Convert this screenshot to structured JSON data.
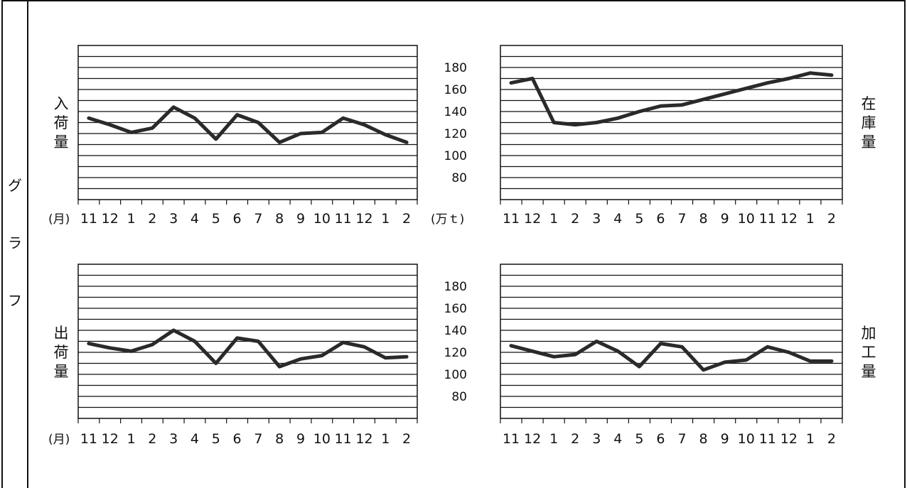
{
  "side_title": [
    "グ",
    "ラ",
    "フ"
  ],
  "month_unit": "(月)",
  "value_unit": "(万ｔ)",
  "x_ticks": [
    "11",
    "12",
    "1",
    "2",
    "3",
    "4",
    "5",
    "6",
    "7",
    "8",
    "9",
    "10",
    "11",
    "12",
    "1",
    "2"
  ],
  "chart_data": [
    {
      "type": "line",
      "id": "arrivals",
      "label": [
        "入",
        "荷",
        "量"
      ],
      "ylim": [
        60,
        200
      ],
      "yticks": [],
      "grid": true,
      "series": [
        {
          "values": [
            134,
            128,
            121,
            125,
            144,
            134,
            115,
            137,
            130,
            112,
            120,
            121,
            134,
            128,
            119,
            112
          ]
        }
      ]
    },
    {
      "type": "line",
      "id": "inventory",
      "label": [
        "在",
        "庫",
        "量"
      ],
      "ylim": [
        60,
        200
      ],
      "yticks": [
        "180",
        "160",
        "140",
        "120",
        "100",
        "80"
      ],
      "grid": true,
      "series": [
        {
          "values": [
            166,
            170,
            130,
            128,
            130,
            134,
            140,
            145,
            146,
            151,
            156,
            161,
            166,
            170,
            175,
            173
          ]
        }
      ]
    },
    {
      "type": "line",
      "id": "shipments",
      "label": [
        "出",
        "荷",
        "量"
      ],
      "ylim": [
        60,
        200
      ],
      "yticks": [],
      "grid": true,
      "series": [
        {
          "values": [
            128,
            124,
            121,
            127,
            140,
            130,
            110,
            133,
            130,
            107,
            114,
            117,
            129,
            125,
            115,
            116
          ]
        }
      ]
    },
    {
      "type": "line",
      "id": "processing",
      "label": [
        "加",
        "工",
        "量"
      ],
      "ylim": [
        60,
        200
      ],
      "yticks": [
        "180",
        "160",
        "140",
        "120",
        "100",
        "80"
      ],
      "grid": true,
      "series": [
        {
          "values": [
            126,
            121,
            116,
            118,
            130,
            121,
            107,
            128,
            125,
            104,
            111,
            113,
            125,
            120,
            112,
            112
          ]
        }
      ]
    }
  ]
}
